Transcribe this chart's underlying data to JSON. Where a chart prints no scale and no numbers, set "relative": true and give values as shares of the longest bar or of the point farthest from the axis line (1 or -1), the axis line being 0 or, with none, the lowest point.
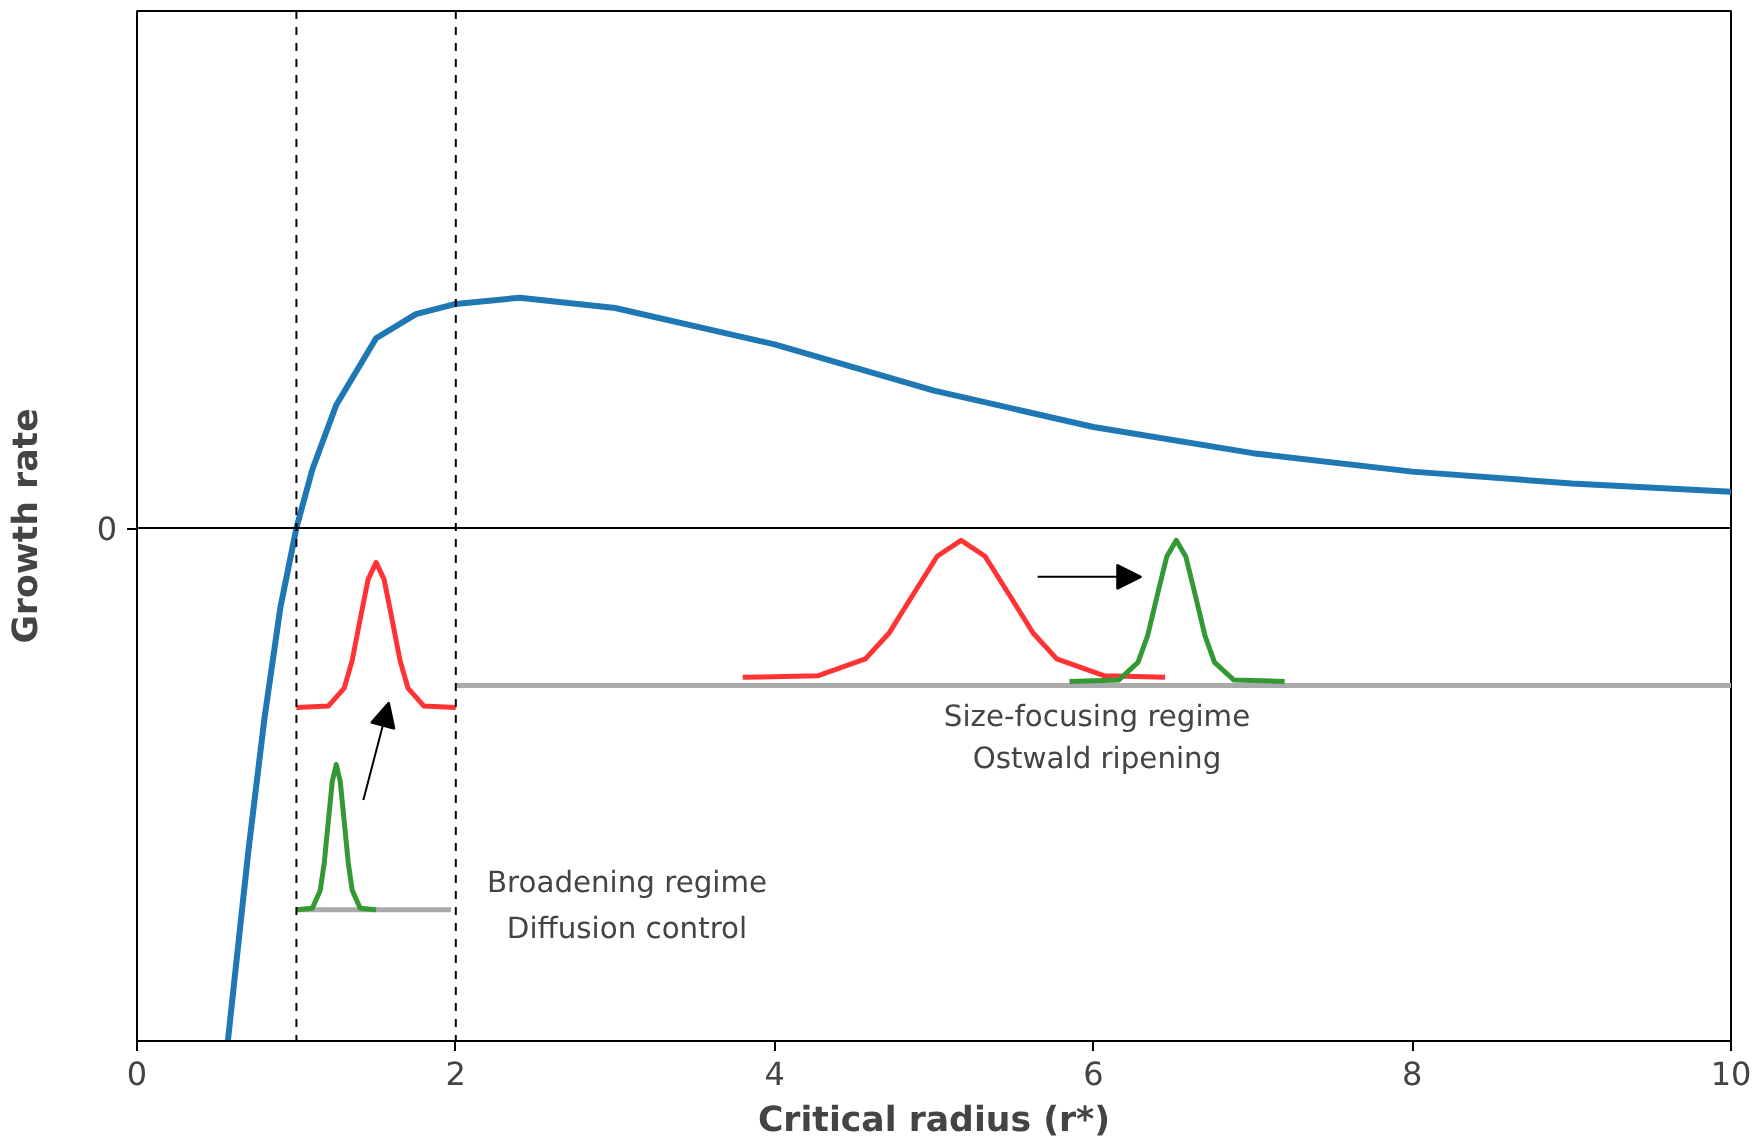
{
  "chart_data": {
    "type": "line",
    "relative": true,
    "xlabel": "Critical radius (r*)",
    "ylabel": "Growth rate",
    "xlim": [
      0,
      10
    ],
    "xticks": [
      0,
      2,
      4,
      6,
      8,
      10
    ],
    "grid": false,
    "marker": "none",
    "line_style": "solid",
    "series": [
      {
        "color": "#1f77b4",
        "x": [
          0.57,
          0.7,
          0.8,
          0.9,
          1.0,
          1.1,
          1.25,
          1.5,
          1.75,
          2.0,
          2.4,
          3.0,
          4.0,
          5.0,
          6.0,
          7.0,
          8.0,
          9.0,
          10.0
        ],
        "values": [
          -1,
          -0.626,
          -0.37,
          -0.154,
          0,
          0.114,
          0.24,
          0.37,
          0.417,
          0.437,
          0.449,
          0.429,
          0.358,
          0.268,
          0.197,
          0.146,
          0.11,
          0.087,
          0.071
        ]
      },
      {
        "color": "#aaaaaa",
        "x": [
          1.0,
          1.97
        ],
        "values": [
          -0.744,
          -0.744
        ]
      },
      {
        "color": "#aaaaaa",
        "x": [
          2.0,
          10.0
        ],
        "values": [
          -0.307,
          -0.307
        ]
      },
      {
        "color": "#ff3333",
        "x": [
          1.0,
          1.2,
          1.3,
          1.35,
          1.4,
          1.45,
          1.5,
          1.55,
          1.6,
          1.65,
          1.7,
          1.8,
          2.0
        ],
        "values": [
          -0.35,
          -0.347,
          -0.312,
          -0.258,
          -0.178,
          -0.1,
          -0.067,
          -0.1,
          -0.178,
          -0.258,
          -0.312,
          -0.347,
          -0.35
        ]
      },
      {
        "color": "#339933",
        "x": [
          1.0,
          1.1,
          1.15,
          1.175,
          1.2,
          1.225,
          1.25,
          1.275,
          1.3,
          1.325,
          1.35,
          1.4,
          1.5
        ],
        "values": [
          -0.744,
          -0.741,
          -0.706,
          -0.652,
          -0.572,
          -0.494,
          -0.461,
          -0.494,
          -0.572,
          -0.652,
          -0.706,
          -0.741,
          -0.744
        ]
      },
      {
        "color": "#ff3333",
        "x": [
          3.8,
          4.27,
          4.57,
          4.72,
          4.87,
          5.02,
          5.17,
          5.32,
          5.47,
          5.62,
          5.77,
          6.07,
          6.45
        ],
        "values": [
          -0.291,
          -0.288,
          -0.255,
          -0.204,
          -0.129,
          -0.055,
          -0.024,
          -0.055,
          -0.129,
          -0.204,
          -0.255,
          -0.288,
          -0.291
        ]
      },
      {
        "color": "#339933",
        "x": [
          5.85,
          6.16,
          6.28,
          6.34,
          6.4,
          6.46,
          6.52,
          6.58,
          6.64,
          6.7,
          6.76,
          6.88,
          7.2
        ],
        "values": [
          -0.299,
          -0.296,
          -0.262,
          -0.21,
          -0.132,
          -0.056,
          -0.024,
          -0.056,
          -0.132,
          -0.21,
          -0.262,
          -0.296,
          -0.299
        ]
      }
    ],
    "ref_lines": [
      {
        "axis": "x",
        "value": 1,
        "color": "#000000",
        "line_style": "dashed"
      },
      {
        "axis": "x",
        "value": 2,
        "color": "#000000",
        "line_style": "dashed"
      },
      {
        "axis": "y",
        "value": 0,
        "label": "0",
        "color": "#000000",
        "line_style": "solid"
      }
    ],
    "annotations": [
      "Size-focusing regime",
      "Ostwald ripening",
      "Broadening regime",
      "Diffusion control"
    ]
  }
}
